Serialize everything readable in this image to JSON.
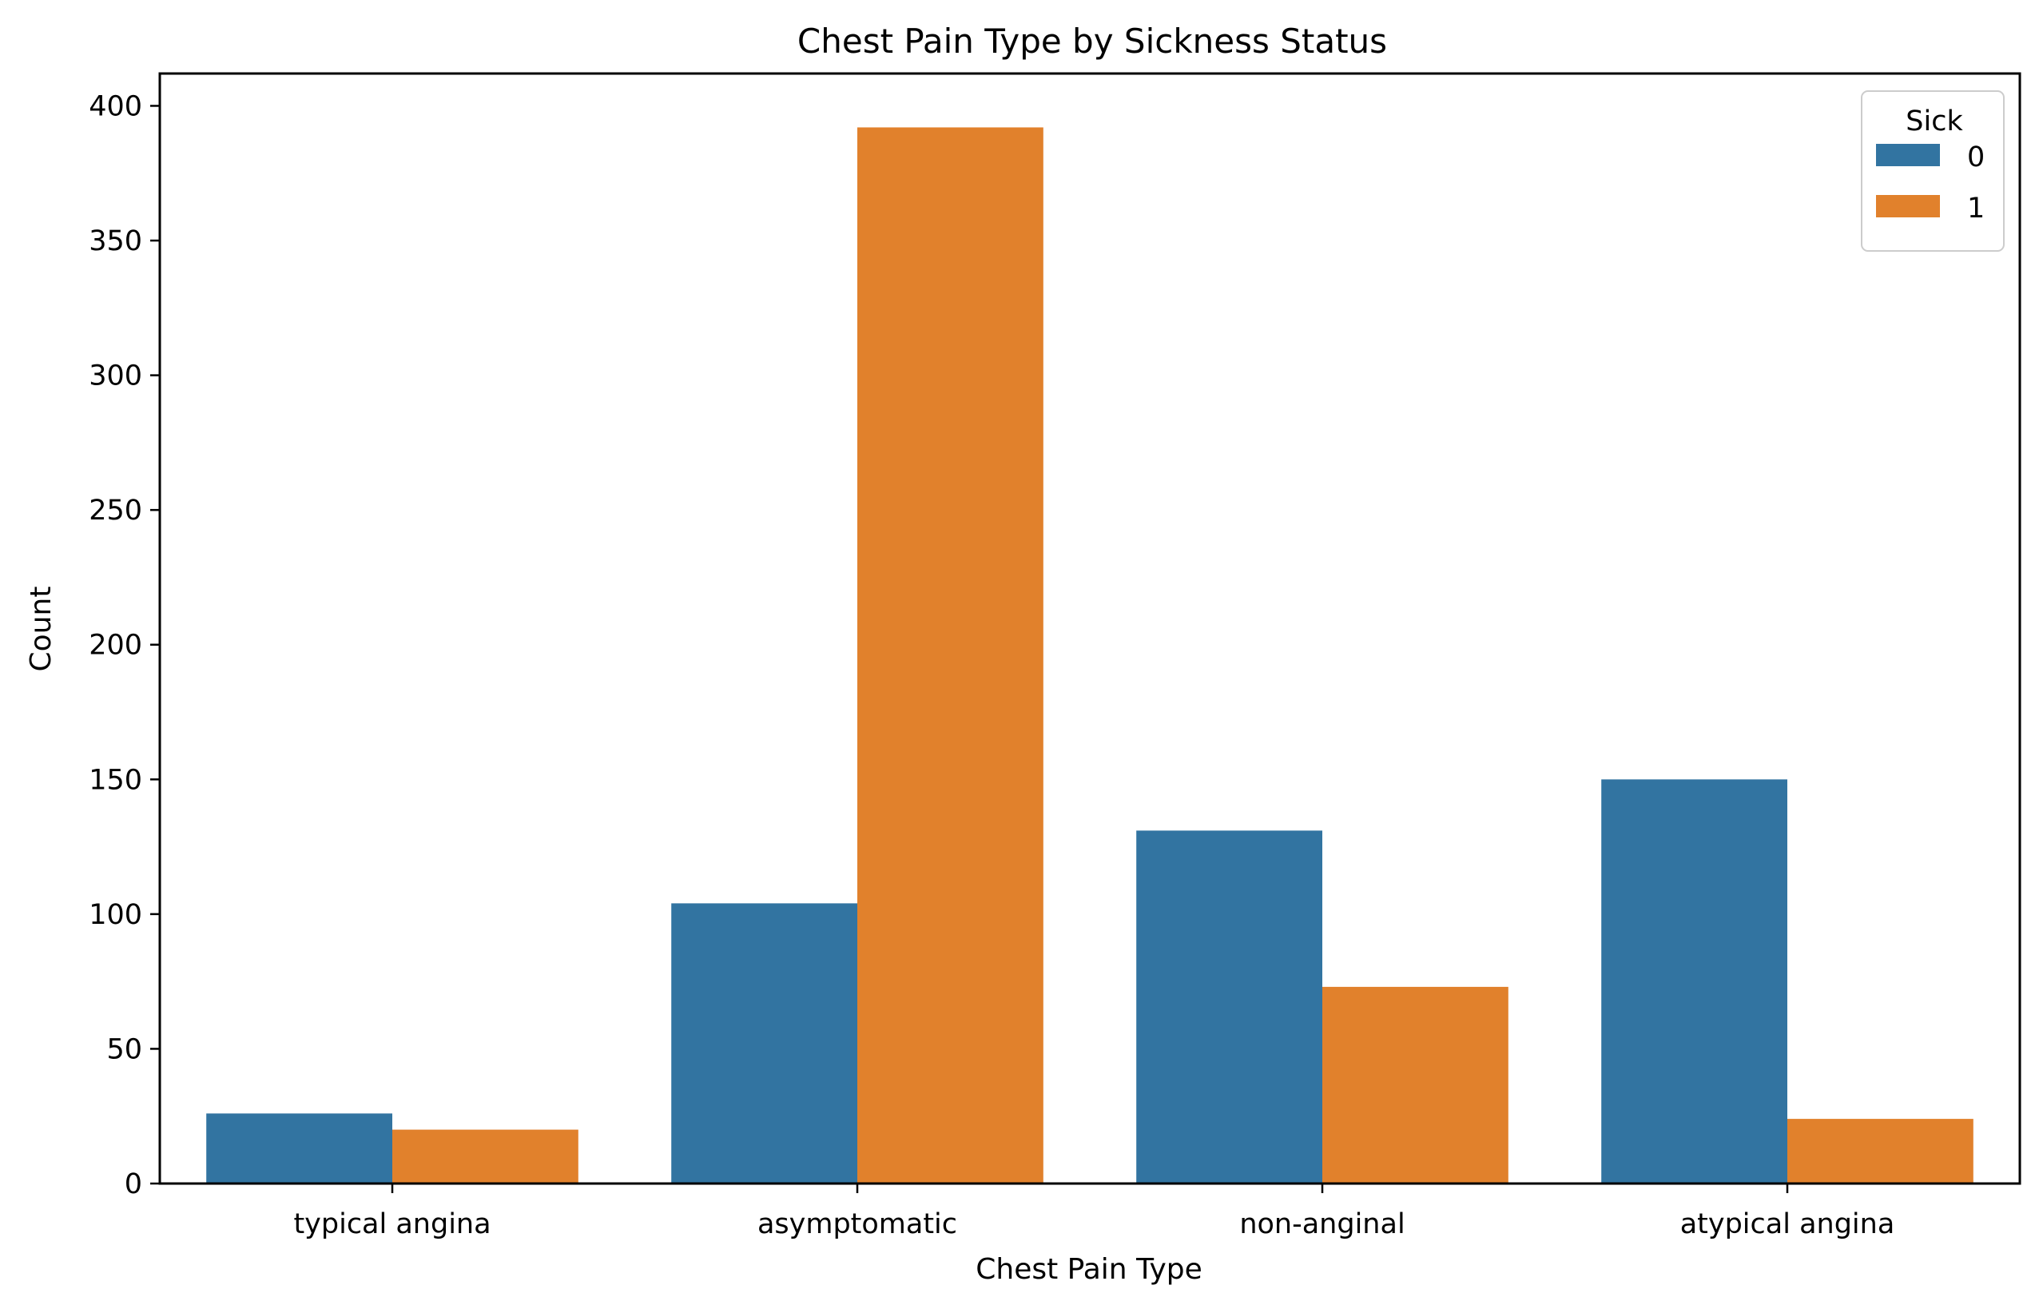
{
  "chart_data": {
    "type": "bar",
    "title": "Chest Pain Type by Sickness Status",
    "xlabel": "Chest Pain Type",
    "ylabel": "Count",
    "categories": [
      "typical angina",
      "asymptomatic",
      "non-anginal",
      "atypical angina"
    ],
    "series": [
      {
        "name": "0",
        "values": [
          26,
          104,
          131,
          150
        ],
        "color": "#3274a1"
      },
      {
        "name": "1",
        "values": [
          20,
          392,
          73,
          24
        ],
        "color": "#e1812c"
      }
    ],
    "ylim": [
      0,
      412
    ],
    "yticks": [
      0,
      50,
      100,
      150,
      200,
      250,
      300,
      350,
      400
    ],
    "grid": false,
    "legend": {
      "title": "Sick",
      "placement": "top-right"
    }
  }
}
